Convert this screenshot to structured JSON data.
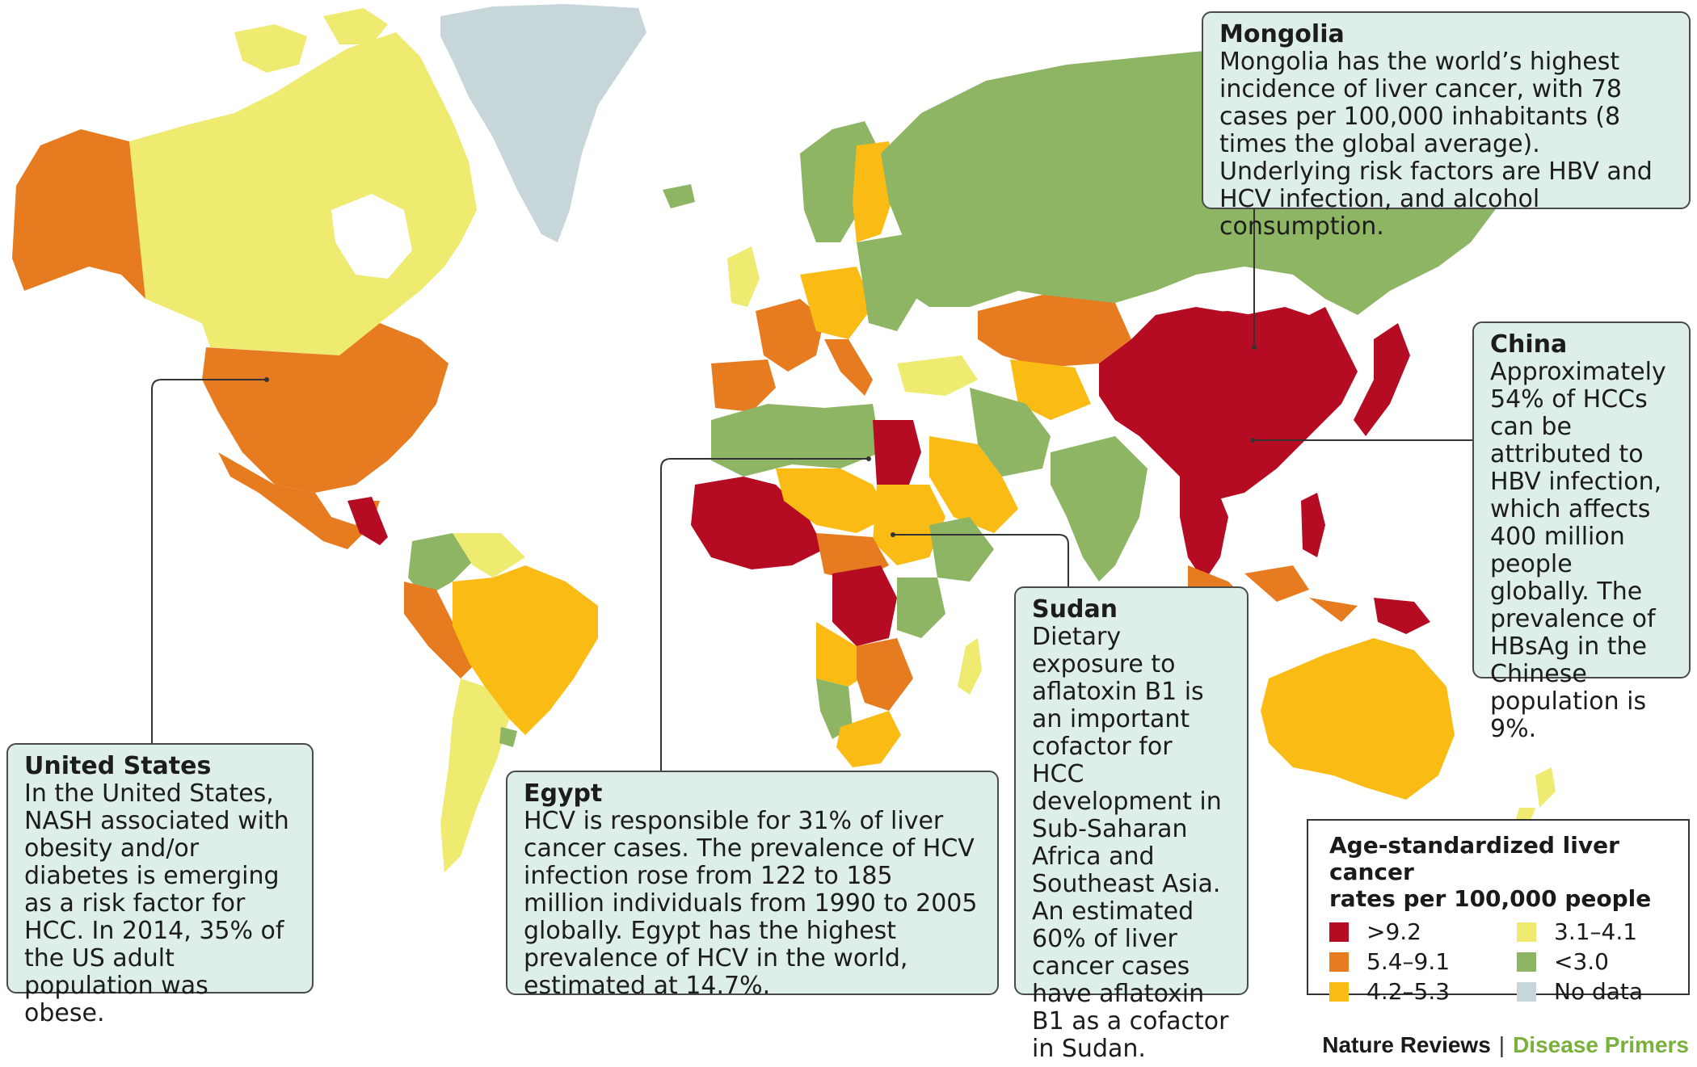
{
  "legend": {
    "title_line1": "Age-standardized liver cancer",
    "title_line2": "rates per 100,000 people",
    "items": [
      {
        "label": ">9.2",
        "color": "#b50b23"
      },
      {
        "label": "3.1–4.1",
        "color": "#eeeb70"
      },
      {
        "label": "5.4–9.1",
        "color": "#e67c1f"
      },
      {
        "label": "<3.0",
        "color": "#8db563"
      },
      {
        "label": "4.2–5.3",
        "color": "#fbbb15"
      },
      {
        "label": "No data",
        "color": "#c6d6d9"
      }
    ]
  },
  "callouts": {
    "mongolia": {
      "title": "Mongolia",
      "body": "Mongolia has the world’s highest incidence of liver cancer, with 78 cases per 100,000 inhabitants (8 times the global average). Underlying risk factors are HBV and HCV infection, and alcohol consumption."
    },
    "china": {
      "title": "China",
      "body": "Approximately 54% of HCCs can be attributed to HBV infection, which affects 400 million people globally. The prevalence of HBsAg in the Chinese population is 9%."
    },
    "us": {
      "title": "United States",
      "body": "In the United States, NASH associated with obesity and/or diabetes is emerging as a risk factor for HCC. In 2014, 35% of the US adult population was obese."
    },
    "egypt": {
      "title": "Egypt",
      "body": "HCV is responsible for 31% of liver cancer cases. The prevalence of HCV infection rose from 122 to 185 million individuals from 1990 to 2005 globally. Egypt has the highest prevalence of HCV in the world, estimated at 14.7%."
    },
    "sudan": {
      "title": "Sudan",
      "body": "Dietary exposure to aflatoxin B1 is an important cofactor for HCC development in Sub-Saharan Africa and Southeast Asia. An estimated 60% of liver cancer cases have aflatoxin B1 as a cofactor in Sudan."
    }
  },
  "credit": {
    "journal": "Nature Reviews",
    "separator": "|",
    "series": "Disease Primers"
  },
  "region_colors": {
    "high": "#b50b23",
    "mid_high": "#e67c1f",
    "mid": "#fbbb15",
    "low_mid": "#eeeb70",
    "low": "#8db563",
    "no_data": "#c6d6d9"
  }
}
